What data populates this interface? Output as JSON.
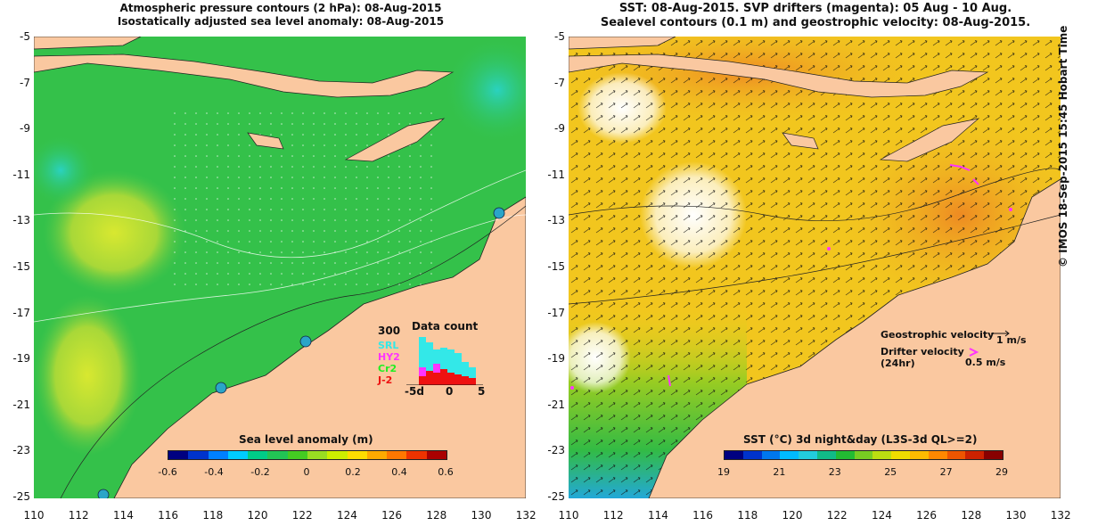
{
  "left_panel": {
    "title_line1": "Atmospheric pressure contours (2 hPa): 08-Aug-2015",
    "title_line2": "Isostatically adjusted sea level anomaly: 08-Aug-2015",
    "colorbar": {
      "title": "Sea level anomaly (m)",
      "ticks": [
        "-0.6",
        "-0.4",
        "-0.2",
        "0",
        "0.2",
        "0.4",
        "0.6"
      ],
      "colors": [
        "#000080",
        "#0033cc",
        "#0080ff",
        "#00ccff",
        "#00cc88",
        "#22c455",
        "#44cc22",
        "#99dd22",
        "#ccee00",
        "#ffdd00",
        "#ffaa00",
        "#ff7700",
        "#ee3300",
        "#aa0000"
      ]
    },
    "inset": {
      "title": "Data count",
      "ymax": "300",
      "legend": [
        {
          "label": "SRL",
          "color": "#33e8e8"
        },
        {
          "label": "HY2",
          "color": "#ff33ff"
        },
        {
          "label": "Cr2",
          "color": "#22ee22"
        },
        {
          "label": "J-2",
          "color": "#ee1111"
        }
      ],
      "xticks": [
        "-5d",
        "0",
        "5"
      ]
    }
  },
  "right_panel": {
    "title_line1": "SST: 08-Aug-2015. SVP drifters (magenta): 05 Aug - 10 Aug.",
    "title_line2": "Sealevel contours (0.1 m) and geostrophic velocity: 08-Aug-2015.",
    "colorbar": {
      "title": "SST (°C) 3d night&day (L3S-3d QL>=2)",
      "ticks": [
        "19",
        "21",
        "23",
        "25",
        "27",
        "29"
      ],
      "colors": [
        "#000080",
        "#0033cc",
        "#0077ee",
        "#00bbff",
        "#22ccdd",
        "#11bb88",
        "#22bb33",
        "#77cc22",
        "#bbdd11",
        "#eedd00",
        "#ffbb00",
        "#ff8800",
        "#ee5500",
        "#cc2200",
        "#880000"
      ]
    },
    "legend": {
      "geo_label": "Geostrophic velocity",
      "geo_value": "1 m/s",
      "drifter_label_line1": "Drifter velocity",
      "drifter_label_line2": "(24hr)",
      "drifter_value": "0.5 m/s"
    }
  },
  "axes": {
    "yticks": [
      "-5",
      "-7",
      "-9",
      "-11",
      "-13",
      "-15",
      "-17",
      "-19",
      "-21",
      "-23",
      "-25"
    ],
    "xticks": [
      "110",
      "112",
      "114",
      "116",
      "118",
      "120",
      "122",
      "124",
      "126",
      "128",
      "130",
      "132"
    ]
  },
  "copyright": "© IMOS 18-Sep-2015 15:45 Hobart Time",
  "colors": {
    "land": "#fac8a0",
    "ocean_green": "#33c24a",
    "sst_yellow": "#f0d21e",
    "sst_orange": "#f0a028"
  }
}
